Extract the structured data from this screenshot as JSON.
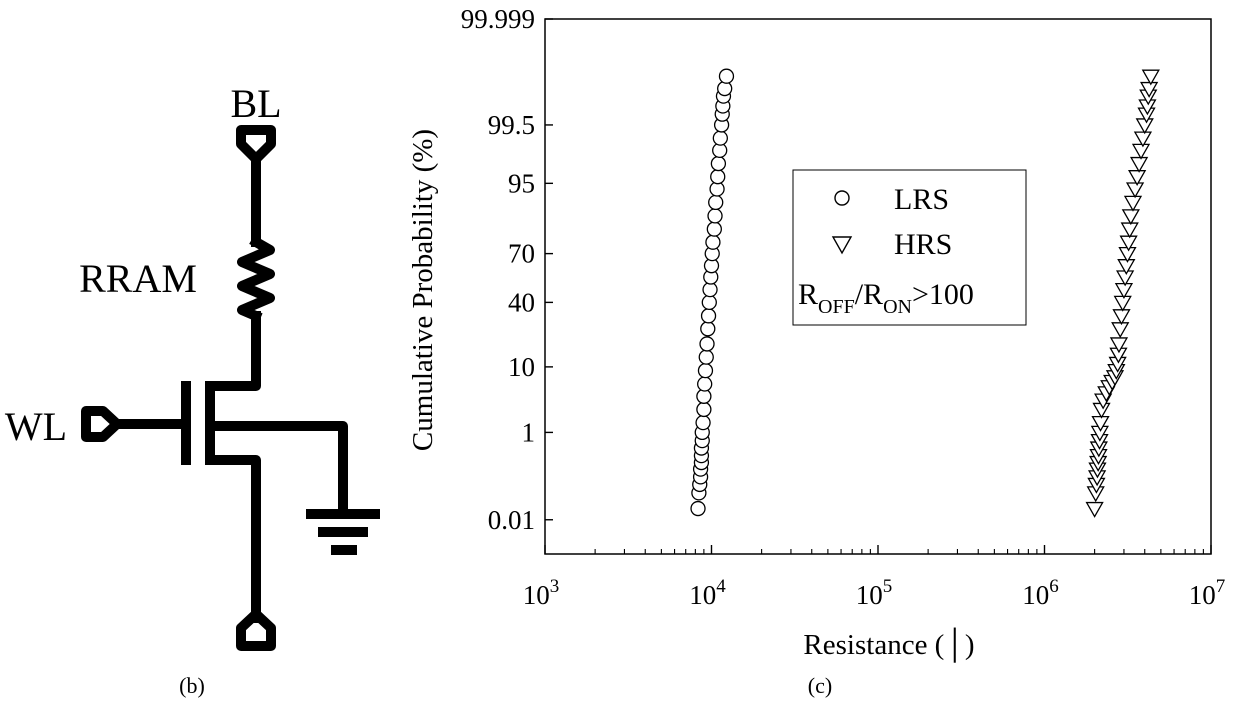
{
  "circuit": {
    "caption": "(b)",
    "labels": {
      "bl": "BL",
      "rram": "RRAM",
      "wl": "WL"
    },
    "icons": [
      "bl-terminal-icon",
      "rram-resistor-icon",
      "transistor-icon",
      "wl-terminal-icon",
      "ground-icon",
      "source-terminal-icon"
    ]
  },
  "plot": {
    "caption": "(c)",
    "symbols": {
      "LRS": "circle",
      "HRS": "triangle-down"
    },
    "colors": {
      "stroke": "#000000",
      "background": "#ffffff"
    }
  },
  "chart_data": {
    "type": "scatter",
    "xlabel": "Resistance (│)",
    "ylabel": "Cumulative Probability (%)",
    "x_scale": "log",
    "y_scale": "normal-probability",
    "xlim": [
      1000,
      10000000
    ],
    "ylim": [
      0.001,
      99.999
    ],
    "x_ticks": [
      {
        "value": 1000,
        "base": "10",
        "exp": "3"
      },
      {
        "value": 10000,
        "base": "10",
        "exp": "4"
      },
      {
        "value": 100000,
        "base": "10",
        "exp": "5"
      },
      {
        "value": 1000000,
        "base": "10",
        "exp": "6"
      },
      {
        "value": 10000000,
        "base": "10",
        "exp": "7"
      }
    ],
    "y_ticks": [
      {
        "value": 0.01,
        "label": "0.01"
      },
      {
        "value": 1,
        "label": "1"
      },
      {
        "value": 10,
        "label": "10"
      },
      {
        "value": 40,
        "label": "40"
      },
      {
        "value": 70,
        "label": "70"
      },
      {
        "value": 95,
        "label": "95"
      },
      {
        "value": 99.5,
        "label": "99.5"
      },
      {
        "value": 99.999,
        "label": "99.999"
      }
    ],
    "legend": {
      "placement": "center",
      "entries": [
        {
          "series": "LRS",
          "label": "LRS"
        },
        {
          "series": "HRS",
          "label": "HRS"
        }
      ],
      "annotation": {
        "r1": "R",
        "sub1": "OFF",
        "slash": "/R",
        "sub2": "ON",
        "tail": ">100"
      }
    },
    "grid": false,
    "series": [
      {
        "name": "LRS",
        "marker": "circle",
        "points": [
          [
            8300,
            0.02
          ],
          [
            8400,
            0.05
          ],
          [
            8500,
            0.08
          ],
          [
            8600,
            0.12
          ],
          [
            8600,
            0.18
          ],
          [
            8700,
            0.25
          ],
          [
            8700,
            0.35
          ],
          [
            8700,
            0.5
          ],
          [
            8800,
            0.7
          ],
          [
            8800,
            1
          ],
          [
            8900,
            1.5
          ],
          [
            9000,
            2.5
          ],
          [
            9000,
            4
          ],
          [
            9100,
            6
          ],
          [
            9200,
            9
          ],
          [
            9300,
            13
          ],
          [
            9400,
            18
          ],
          [
            9500,
            25
          ],
          [
            9600,
            32
          ],
          [
            9700,
            40
          ],
          [
            9800,
            48
          ],
          [
            9900,
            56
          ],
          [
            10000,
            63
          ],
          [
            10100,
            70
          ],
          [
            10200,
            76
          ],
          [
            10400,
            82
          ],
          [
            10500,
            87
          ],
          [
            10600,
            91
          ],
          [
            10800,
            94
          ],
          [
            10900,
            96
          ],
          [
            11000,
            97.5
          ],
          [
            11200,
            98.5
          ],
          [
            11300,
            99.1
          ],
          [
            11500,
            99.5
          ],
          [
            11600,
            99.7
          ],
          [
            11700,
            99.8
          ],
          [
            11800,
            99.88
          ],
          [
            12000,
            99.92
          ],
          [
            12300,
            99.96
          ]
        ]
      },
      {
        "name": "HRS",
        "marker": "triangle-down",
        "points": [
          [
            2000000,
            0.02
          ],
          [
            2030000,
            0.05
          ],
          [
            2050000,
            0.08
          ],
          [
            2070000,
            0.12
          ],
          [
            2080000,
            0.18
          ],
          [
            2100000,
            0.25
          ],
          [
            2110000,
            0.35
          ],
          [
            2120000,
            0.5
          ],
          [
            2140000,
            0.7
          ],
          [
            2150000,
            1
          ],
          [
            2170000,
            1.5
          ],
          [
            2200000,
            2.5
          ],
          [
            2250000,
            3.5
          ],
          [
            2350000,
            4.5
          ],
          [
            2450000,
            5.5
          ],
          [
            2550000,
            6.5
          ],
          [
            2650000,
            7.5
          ],
          [
            2700000,
            9
          ],
          [
            2750000,
            11
          ],
          [
            2780000,
            14
          ],
          [
            2800000,
            18
          ],
          [
            2850000,
            25
          ],
          [
            2900000,
            32
          ],
          [
            2950000,
            40
          ],
          [
            3000000,
            48
          ],
          [
            3050000,
            56
          ],
          [
            3100000,
            63
          ],
          [
            3150000,
            70
          ],
          [
            3200000,
            76
          ],
          [
            3250000,
            82
          ],
          [
            3300000,
            87
          ],
          [
            3400000,
            91
          ],
          [
            3500000,
            94
          ],
          [
            3600000,
            96
          ],
          [
            3700000,
            97.5
          ],
          [
            3800000,
            98.5
          ],
          [
            3900000,
            99.1
          ],
          [
            4000000,
            99.5
          ],
          [
            4100000,
            99.7
          ],
          [
            4150000,
            99.8
          ],
          [
            4200000,
            99.88
          ],
          [
            4250000,
            99.92
          ],
          [
            4350000,
            99.96
          ]
        ]
      }
    ]
  }
}
